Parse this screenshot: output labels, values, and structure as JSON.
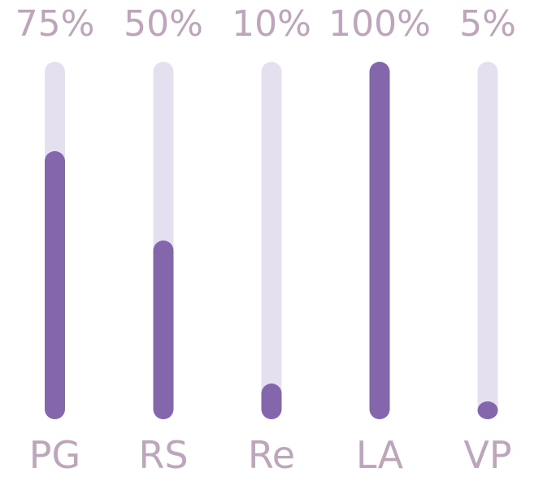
{
  "chart_data": {
    "type": "bar",
    "orientation": "vertical",
    "categories": [
      "PG",
      "RS",
      "Re",
      "LA",
      "VP"
    ],
    "values": [
      75,
      50,
      10,
      100,
      5
    ],
    "value_labels": [
      "75%",
      "50%",
      "10%",
      "100%",
      "5%"
    ],
    "ylim": [
      0,
      100
    ],
    "grid": false,
    "colors": {
      "fill": "#8466ac",
      "track": "#e4e0f0",
      "text": "#bda6bb"
    }
  }
}
